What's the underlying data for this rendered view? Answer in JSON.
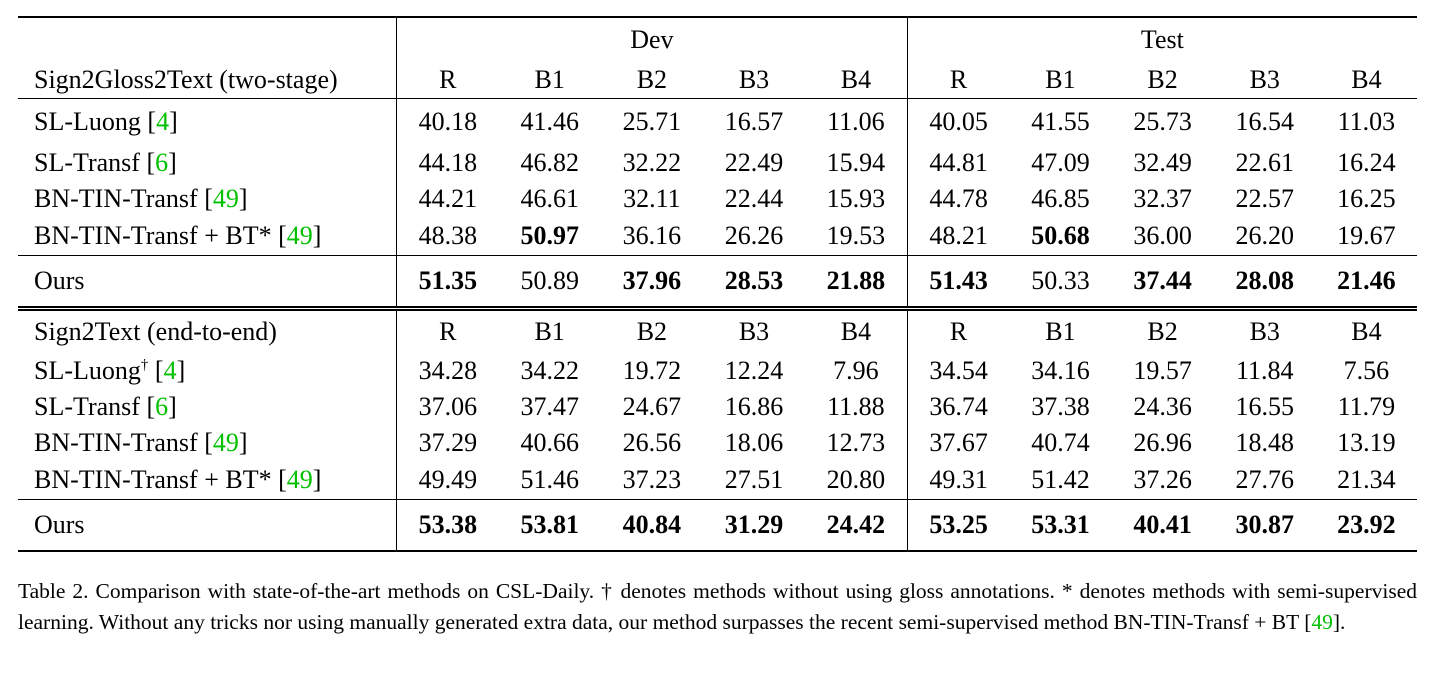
{
  "table": {
    "groups": [
      "Dev",
      "Test"
    ],
    "columns": [
      "R",
      "B1",
      "B2",
      "B3",
      "B4",
      "R",
      "B1",
      "B2",
      "B3",
      "B4"
    ],
    "section1": {
      "header": "Sign2Gloss2Text (two-stage)",
      "rows": [
        {
          "name": "SL-Luong ",
          "ref": "4",
          "values": [
            "40.18",
            "41.46",
            "25.71",
            "16.57",
            "11.06",
            "40.05",
            "41.55",
            "25.73",
            "16.54",
            "11.03"
          ]
        },
        {
          "name": "SL-Transf ",
          "ref": "6",
          "values": [
            "44.18",
            "46.82",
            "32.22",
            "22.49",
            "15.94",
            "44.81",
            "47.09",
            "32.49",
            "22.61",
            "16.24"
          ]
        },
        {
          "name": "BN-TIN-Transf ",
          "ref": "49",
          "values": [
            "44.21",
            "46.61",
            "32.11",
            "22.44",
            "15.93",
            "44.78",
            "46.85",
            "32.37",
            "22.57",
            "16.25"
          ]
        },
        {
          "name": "BN-TIN-Transf + BT* ",
          "ref": "49",
          "values": [
            "48.38",
            "50.97",
            "36.16",
            "26.26",
            "19.53",
            "48.21",
            "50.68",
            "36.00",
            "26.20",
            "19.67"
          ]
        }
      ],
      "ours": {
        "name": "Ours",
        "values": [
          "51.35",
          "50.89",
          "37.96",
          "28.53",
          "21.88",
          "51.43",
          "50.33",
          "37.44",
          "28.08",
          "21.46"
        ]
      }
    },
    "section2": {
      "header": "Sign2Text (end-to-end)",
      "rows": [
        {
          "name": "SL-Luong",
          "sup": "†",
          "ref": "4",
          "values": [
            "34.28",
            "34.22",
            "19.72",
            "12.24",
            "7.96",
            "34.54",
            "34.16",
            "19.57",
            "11.84",
            "7.56"
          ]
        },
        {
          "name": "SL-Transf ",
          "ref": "6",
          "values": [
            "37.06",
            "37.47",
            "24.67",
            "16.86",
            "11.88",
            "36.74",
            "37.38",
            "24.36",
            "16.55",
            "11.79"
          ]
        },
        {
          "name": "BN-TIN-Transf ",
          "ref": "49",
          "values": [
            "37.29",
            "40.66",
            "26.56",
            "18.06",
            "12.73",
            "37.67",
            "40.74",
            "26.96",
            "18.48",
            "13.19"
          ]
        },
        {
          "name": "BN-TIN-Transf + BT* ",
          "ref": "49",
          "values": [
            "49.49",
            "51.46",
            "37.23",
            "27.51",
            "20.80",
            "49.31",
            "51.42",
            "37.26",
            "27.76",
            "21.34"
          ]
        }
      ],
      "ours": {
        "name": "Ours",
        "values": [
          "53.38",
          "53.81",
          "40.84",
          "31.29",
          "24.42",
          "53.25",
          "53.31",
          "40.41",
          "30.87",
          "23.92"
        ]
      }
    }
  },
  "caption": {
    "text": "Table 2. Comparison with state-of-the-art methods on CSL-Daily. † denotes methods without using gloss annotations. * denotes methods with semi-supervised learning. Without any tricks nor using manually generated extra data, our method surpasses the recent semi-supervised method BN-TIN-Transf + BT [",
    "ref": "49",
    "end": "]."
  },
  "colors": {
    "citation": "#00c000",
    "text": "#000000"
  }
}
